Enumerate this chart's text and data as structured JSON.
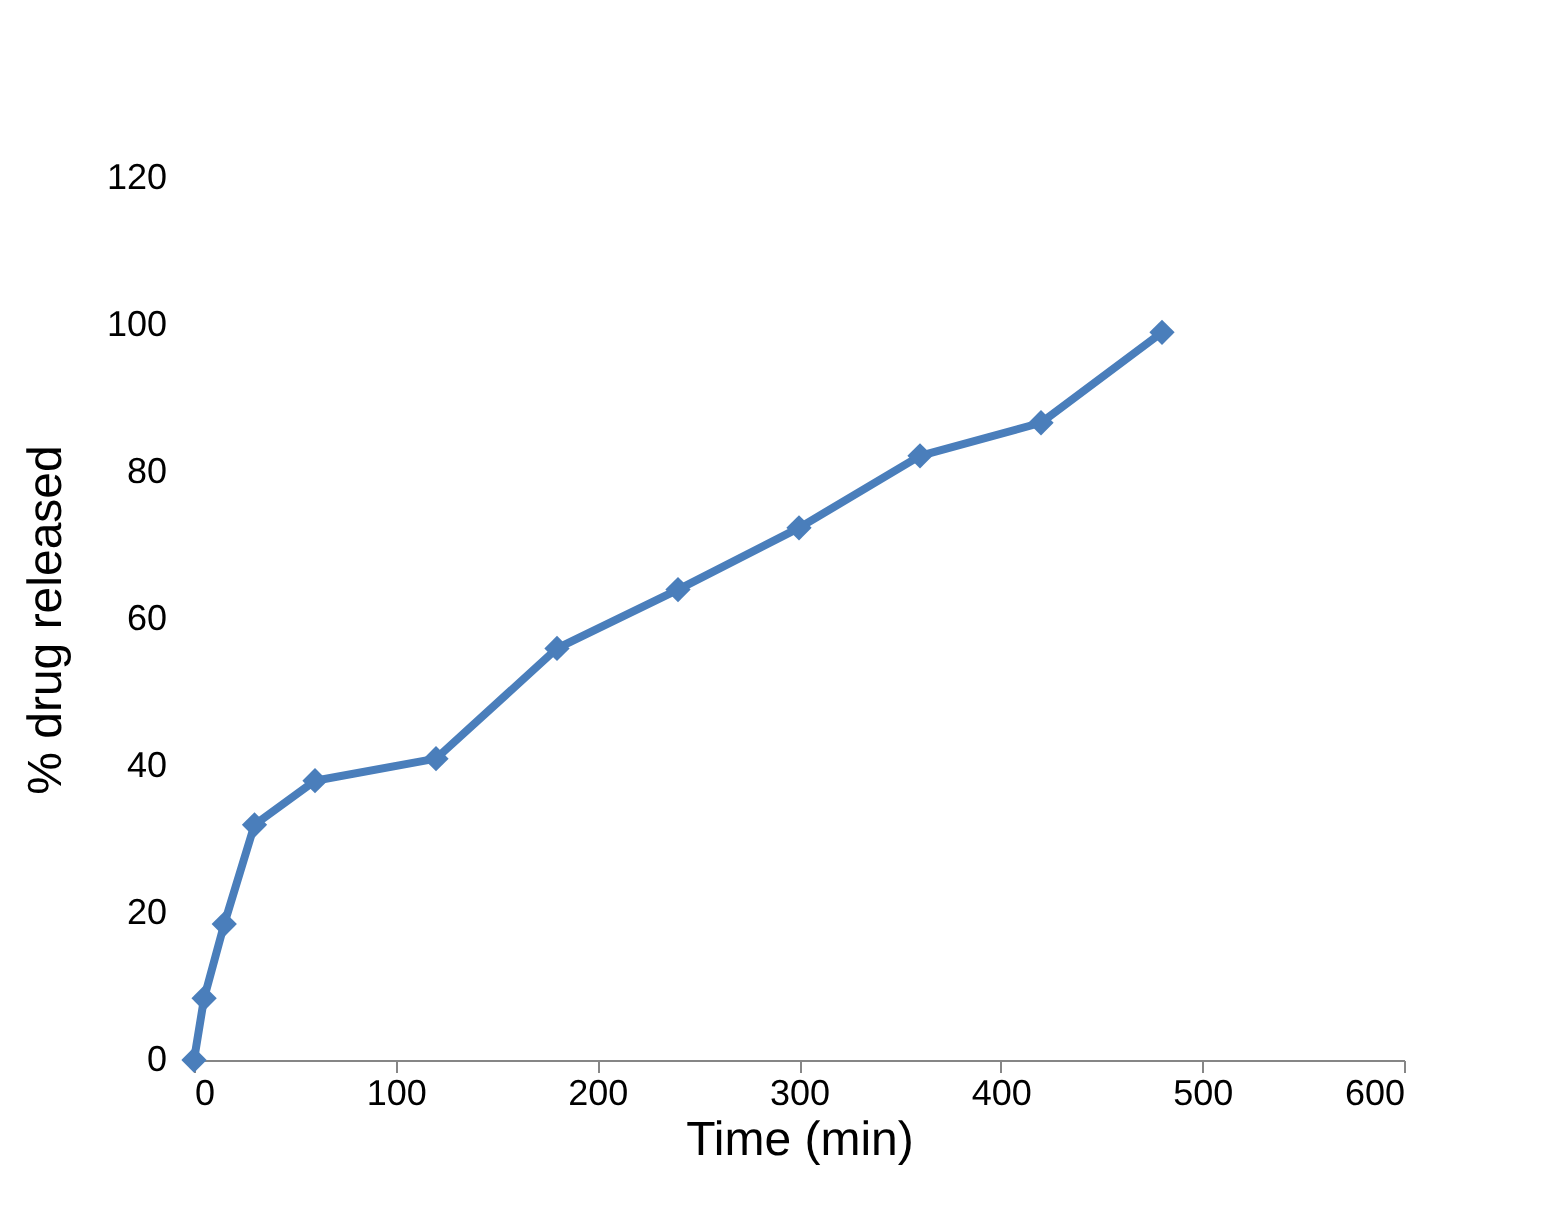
{
  "chart_data": {
    "type": "line",
    "xlabel": "Time (min)",
    "ylabel": "% drug released",
    "x": [
      0,
      5,
      15,
      30,
      60,
      120,
      180,
      240,
      300,
      360,
      420,
      480
    ],
    "series": [
      {
        "color": "#4a7ebb",
        "values": [
          0,
          8.4,
          18.5,
          32,
          38,
          41,
          56,
          64,
          72.4,
          82.2,
          86.7,
          99
        ]
      }
    ],
    "xlim": [
      0,
      600
    ],
    "xticks": [
      0,
      100,
      200,
      300,
      400,
      500,
      600
    ],
    "ylim": [
      0,
      120
    ],
    "yticks": [
      0,
      20,
      40,
      60,
      80,
      100,
      120
    ],
    "grid": false,
    "marker": "diamond",
    "line_style": "solid"
  }
}
